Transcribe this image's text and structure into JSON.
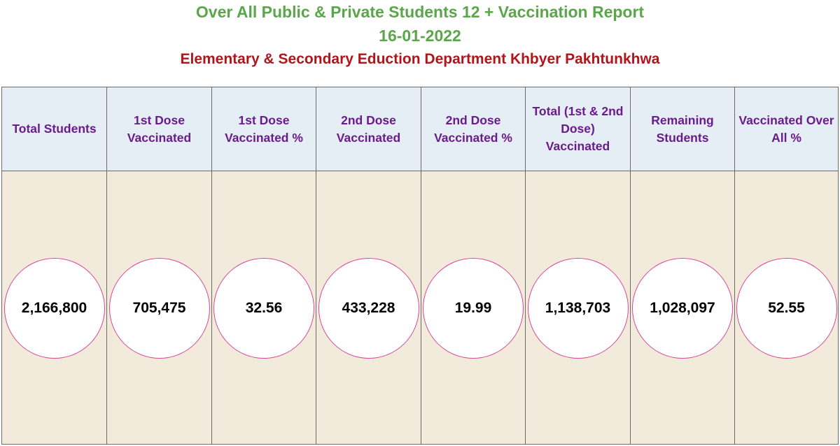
{
  "report": {
    "title": "Over All Public & Private Students 12 + Vaccination Report",
    "date": "16-01-2022",
    "department": "Elementary & Secondary Eduction Department Khbyer Pakhtunkhwa"
  },
  "columns": [
    {
      "header": "Total Students",
      "value": "2,166,800"
    },
    {
      "header": "1st Dose Vaccinated",
      "value": "705,475"
    },
    {
      "header": "1st Dose Vaccinated %",
      "value": "32.56"
    },
    {
      "header": "2nd Dose Vaccinated",
      "value": "433,228"
    },
    {
      "header": "2nd Dose Vaccinated %",
      "value": "19.99"
    },
    {
      "header": "Total (1st & 2nd Dose) Vaccinated",
      "value": "1,138,703"
    },
    {
      "header": "Remaining Students",
      "value": "1,028,097"
    },
    {
      "header": "Vaccinated Over All %",
      "value": "52.55"
    }
  ],
  "colors": {
    "title": "#5aa64a",
    "department": "#b0151c",
    "header_text": "#6a1b8c",
    "header_bg": "#e5eef5",
    "body_bg": "#f2ebdc",
    "circle_border": "#d9479a"
  }
}
